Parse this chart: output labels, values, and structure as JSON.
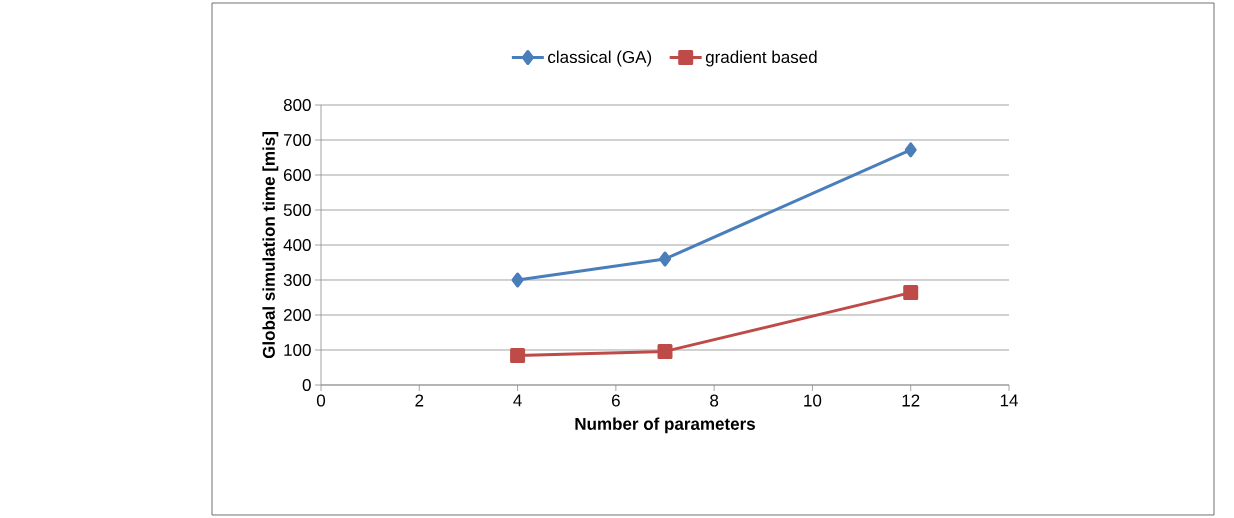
{
  "chart_data": {
    "type": "line",
    "xlabel": "Number of parameters",
    "ylabel": "Global simulation time [mis]",
    "x": [
      4,
      7,
      12
    ],
    "series": [
      {
        "name": "classical (GA)",
        "color": "#4a7ebb",
        "values": [
          300,
          360,
          672
        ],
        "marker": "diamond"
      },
      {
        "name": "gradient based",
        "color": "#be4b48",
        "values": [
          84,
          96,
          264
        ],
        "marker": "square"
      }
    ],
    "xlim": [
      0,
      14
    ],
    "xticks": [
      0,
      2,
      4,
      6,
      8,
      10,
      12,
      14
    ],
    "ylim": [
      0,
      800
    ],
    "yticks": [
      0,
      100,
      200,
      300,
      400,
      500,
      600,
      700,
      800
    ],
    "grid": "y",
    "legend": "top",
    "line_style": "solid"
  }
}
